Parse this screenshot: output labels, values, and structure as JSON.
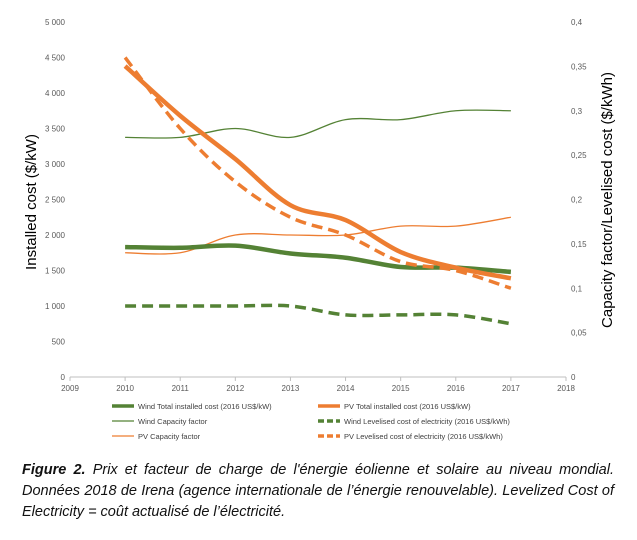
{
  "chart_data": {
    "type": "line",
    "x": [
      2010,
      2011,
      2012,
      2013,
      2014,
      2015,
      2016,
      2017
    ],
    "xlim": [
      2009,
      2018
    ],
    "xticks": [
      "2009",
      "2010",
      "2011",
      "2012",
      "2013",
      "2014",
      "2015",
      "2016",
      "2017",
      "2018"
    ],
    "ylabel": "Installed cost ($/kW)",
    "ylim": [
      0,
      5000
    ],
    "yticks": [
      "0",
      "500",
      "1 000",
      "1 500",
      "2 000",
      "2 500",
      "3 000",
      "3 500",
      "4 000",
      "4 500",
      "5 000"
    ],
    "y2label": "Capacity factor/Levelised cost ($/kWh)",
    "y2lim": [
      0,
      0.4
    ],
    "y2ticks": [
      "0",
      "0,05",
      "0,1",
      "0,15",
      "0,2",
      "0,25",
      "0,3",
      "0,35",
      "0,4"
    ],
    "grid": false,
    "legend_position": "bottom",
    "series": [
      {
        "name": "Wind Total installed cost (2016 US$/kW)",
        "axis": "left",
        "style": "thick-solid",
        "color": "#548235",
        "values": [
          1830,
          1820,
          1850,
          1740,
          1680,
          1550,
          1540,
          1480
        ]
      },
      {
        "name": "PV Total installed cost (2016 US$/kW)",
        "axis": "left",
        "style": "thick-solid",
        "color": "#ED7D31",
        "values": [
          4380,
          3680,
          3070,
          2420,
          2210,
          1760,
          1540,
          1390
        ]
      },
      {
        "name": "Wind Capacity factor",
        "axis": "right",
        "style": "thin-solid",
        "color": "#548235",
        "values": [
          0.27,
          0.27,
          0.28,
          0.27,
          0.29,
          0.29,
          0.3,
          0.3
        ]
      },
      {
        "name": "Wind Levelised cost of electricity (2016 US$/kWh)",
        "axis": "right",
        "style": "dashed",
        "color": "#548235",
        "values": [
          0.08,
          0.08,
          0.08,
          0.08,
          0.07,
          0.07,
          0.07,
          0.06
        ]
      },
      {
        "name": "PV Capacity factor",
        "axis": "right",
        "style": "thin-solid",
        "color": "#ED7D31",
        "values": [
          0.14,
          0.14,
          0.16,
          0.16,
          0.16,
          0.17,
          0.17,
          0.18
        ]
      },
      {
        "name": "PV Levelised cost of electricity (2016 US$/kWh)",
        "axis": "right",
        "style": "dashed",
        "color": "#ED7D31",
        "values": [
          0.36,
          0.28,
          0.22,
          0.18,
          0.16,
          0.13,
          0.12,
          0.1
        ]
      }
    ]
  },
  "caption": {
    "label": "Figure 2.",
    "text": "Prix et facteur de charge de l'énergie éolienne et solaire au niveau mondial. Données 2018 de Irena (agence internationale de l’énergie renouvelable). Levelized Cost of Electricity = coût actualisé de l’électricité."
  }
}
